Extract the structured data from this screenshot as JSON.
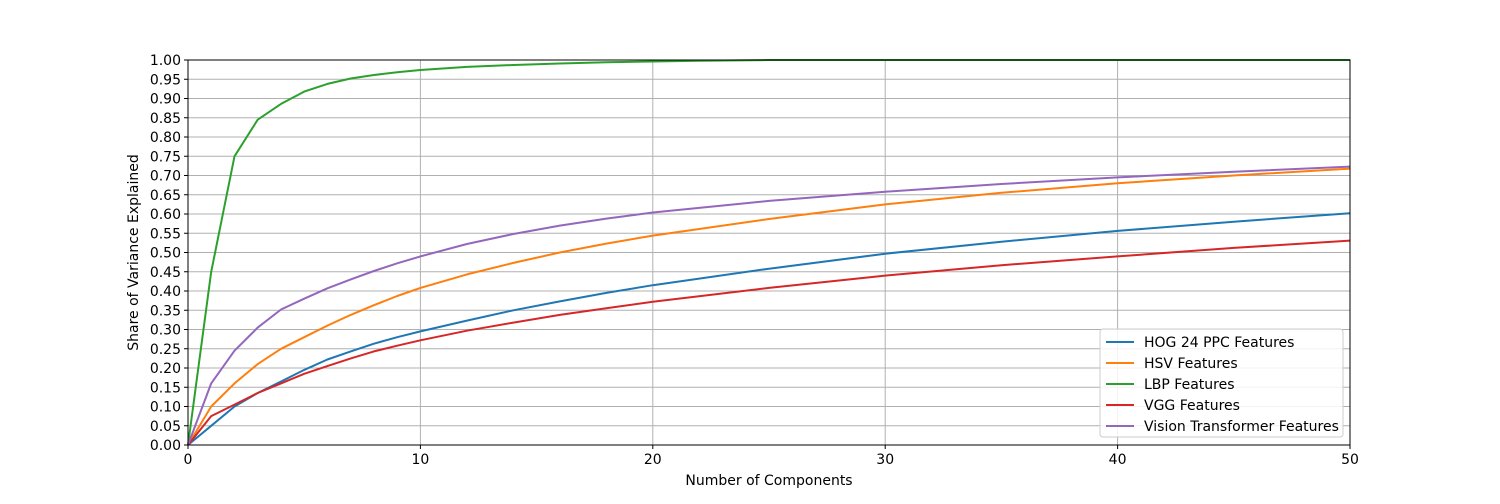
{
  "chart_data": {
    "type": "line",
    "title": "",
    "xlabel": "Number of Components",
    "ylabel": "Share of Variance Explained",
    "xlim": [
      0,
      50
    ],
    "ylim": [
      0,
      1
    ],
    "x_ticks": [
      0,
      10,
      20,
      30,
      40,
      50
    ],
    "y_ticks": [
      0.0,
      0.05,
      0.1,
      0.15,
      0.2,
      0.25,
      0.3,
      0.35,
      0.4,
      0.45,
      0.5,
      0.55,
      0.6,
      0.65,
      0.7,
      0.75,
      0.8,
      0.85,
      0.9,
      0.95,
      1.0
    ],
    "grid": true,
    "legend_position": "lower-right",
    "series": [
      {
        "name": "HOG 24 PPC Features",
        "color": "#1f77b4",
        "x": [
          0,
          1,
          2,
          3,
          4,
          5,
          6,
          7,
          8,
          9,
          10,
          12,
          14,
          16,
          18,
          20,
          25,
          30,
          35,
          40,
          45,
          50
        ],
        "y": [
          0.0,
          0.05,
          0.1,
          0.135,
          0.165,
          0.195,
          0.222,
          0.243,
          0.263,
          0.28,
          0.295,
          0.323,
          0.35,
          0.373,
          0.395,
          0.415,
          0.458,
          0.497,
          0.528,
          0.556,
          0.58,
          0.602
        ]
      },
      {
        "name": "HSV Features",
        "color": "#ff7f0e",
        "x": [
          0,
          1,
          2,
          3,
          4,
          5,
          6,
          7,
          8,
          9,
          10,
          12,
          14,
          16,
          18,
          20,
          25,
          30,
          35,
          40,
          45,
          50
        ],
        "y": [
          0.0,
          0.1,
          0.16,
          0.21,
          0.25,
          0.28,
          0.31,
          0.338,
          0.363,
          0.387,
          0.408,
          0.443,
          0.473,
          0.5,
          0.523,
          0.544,
          0.587,
          0.625,
          0.655,
          0.68,
          0.7,
          0.718
        ]
      },
      {
        "name": "LBP Features",
        "color": "#2ca02c",
        "x": [
          0,
          1,
          2,
          3,
          4,
          5,
          6,
          7,
          8,
          9,
          10,
          12,
          14,
          16,
          18,
          20,
          22,
          25,
          30,
          40,
          50
        ],
        "y": [
          0.0,
          0.45,
          0.75,
          0.845,
          0.886,
          0.918,
          0.938,
          0.952,
          0.961,
          0.968,
          0.974,
          0.982,
          0.987,
          0.991,
          0.994,
          0.996,
          0.998,
          1.0,
          1.0,
          1.0,
          1.0
        ]
      },
      {
        "name": "VGG Features",
        "color": "#d62728",
        "x": [
          0,
          1,
          2,
          3,
          4,
          5,
          6,
          7,
          8,
          9,
          10,
          12,
          14,
          16,
          18,
          20,
          25,
          30,
          35,
          40,
          45,
          50
        ],
        "y": [
          0.0,
          0.075,
          0.105,
          0.135,
          0.16,
          0.185,
          0.205,
          0.225,
          0.243,
          0.258,
          0.272,
          0.297,
          0.318,
          0.338,
          0.355,
          0.372,
          0.408,
          0.44,
          0.467,
          0.49,
          0.512,
          0.531
        ]
      },
      {
        "name": "Vision Transformer Features",
        "color": "#9467bd",
        "x": [
          0,
          1,
          2,
          3,
          4,
          5,
          6,
          7,
          8,
          9,
          10,
          12,
          14,
          16,
          18,
          20,
          25,
          30,
          35,
          40,
          45,
          50
        ],
        "y": [
          0.0,
          0.16,
          0.245,
          0.305,
          0.352,
          0.38,
          0.407,
          0.43,
          0.452,
          0.472,
          0.49,
          0.522,
          0.548,
          0.57,
          0.588,
          0.604,
          0.634,
          0.658,
          0.678,
          0.695,
          0.71,
          0.723
        ]
      }
    ]
  }
}
